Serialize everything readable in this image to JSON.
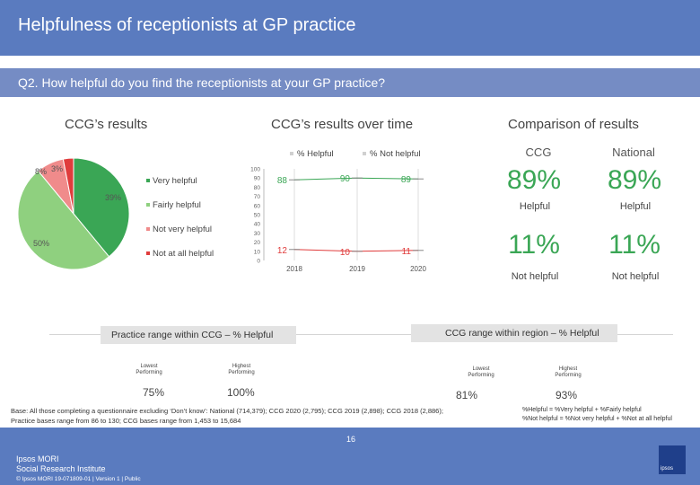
{
  "header": {
    "title": "Helpfulness of receptionists at GP practice"
  },
  "question": {
    "text": "Q2. How helpful do you find the receptionists at your GP practice?"
  },
  "colors": {
    "very_helpful": "#3aa655",
    "fairly_helpful": "#8fd07f",
    "not_very_helpful": "#f08b8b",
    "not_at_all_helpful": "#e03c3c"
  },
  "sections": {
    "ccg_results": "CCG’s results",
    "over_time": "CCG’s results over time",
    "comparison": "Comparison of results"
  },
  "pie": {
    "labels": [
      "39%",
      "50%",
      "8%",
      "3%"
    ],
    "legend": [
      "Very helpful",
      "Fairly helpful",
      "Not very helpful",
      "Not at all helpful"
    ]
  },
  "trend": {
    "legend_helpful": "% Helpful",
    "legend_not_helpful": "% Not helpful"
  },
  "comparison": {
    "ccg_head": "CCG",
    "national_head": "National",
    "ccg_helpful": "89%",
    "national_helpful": "89%",
    "helpful_label": "Helpful",
    "ccg_not_helpful": "11%",
    "national_not_helpful": "11%",
    "not_helpful_label": "Not helpful"
  },
  "practice_range": {
    "title": "Practice range within CCG – % Helpful",
    "lowest_label": "Lowest Performing",
    "highest_label": "Highest Performing",
    "lowest_value": "75%",
    "highest_value": "100%"
  },
  "region_range": {
    "title": "CCG range within region – % Helpful",
    "lowest_label": "Lowest Performing",
    "highest_label": "Highest Performing",
    "lowest_value": "81%",
    "highest_value": "93%"
  },
  "base": {
    "line1": "Base: All those completing a questionnaire excluding ‘Don’t know’: National (714,379); CCG 2020 (2,795); CCG 2019 (2,898); CCG 2018 (2,886);",
    "line2": "Practice bases range from 86 to 130; CCG bases range from 1,453 to 15,684"
  },
  "footnote": {
    "line1": "%Helpful = %Very helpful + %Fairly helpful",
    "line2": "%Not helpful = %Not very helpful + %Not at all helpful"
  },
  "footer": {
    "brand1": "Ipsos MORI",
    "brand2": "Social Research Institute",
    "page": "16",
    "copyright": "© Ipsos MORI     19-071809-01 | Version 1 | Public",
    "badge": "ipsos"
  },
  "chart_data": [
    {
      "type": "pie",
      "title": "CCG’s results",
      "categories": [
        "Very helpful",
        "Fairly helpful",
        "Not very helpful",
        "Not at all helpful"
      ],
      "values": [
        39,
        50,
        8,
        3
      ]
    },
    {
      "type": "line",
      "title": "CCG’s results over time",
      "categories": [
        "2018",
        "2019",
        "2020"
      ],
      "series": [
        {
          "name": "% Helpful",
          "values": [
            88,
            90,
            89
          ]
        },
        {
          "name": "% Not helpful",
          "values": [
            12,
            10,
            11
          ]
        }
      ],
      "ylim": [
        0,
        100
      ],
      "yticks": [
        0,
        10,
        20,
        30,
        40,
        50,
        60,
        70,
        80,
        90,
        100
      ]
    }
  ]
}
